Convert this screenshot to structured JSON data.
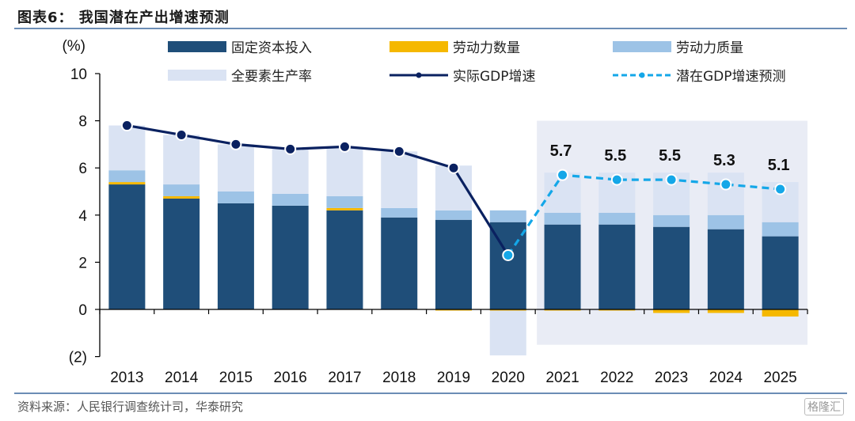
{
  "header": {
    "title": "图表6：  我国潜在产出增速预测"
  },
  "footer": {
    "source": "资料来源：人民银行调查统计司，华泰研究",
    "watermark": "格隆汇"
  },
  "colors": {
    "capital": "#1f4e79",
    "labor_quantity": "#f5b800",
    "labor_quality": "#9dc3e6",
    "tfp": "#dae3f3",
    "actual_gdp": "#0a2160",
    "potential_gdp": "#14a7e8",
    "forecast_shade": "#e9ecf5"
  },
  "chart_data": {
    "type": "bar",
    "stacked": true,
    "title": "我国潜在产出增速预测",
    "ylabel": "(%)",
    "xlabel": "",
    "ylim": [
      -2,
      10
    ],
    "yticks": [
      -2,
      0,
      2,
      4,
      6,
      8,
      10
    ],
    "ytick_labels": [
      "(2)",
      "0",
      "2",
      "4",
      "6",
      "8",
      "10"
    ],
    "grid": false,
    "legend_position": "top",
    "categories": [
      "2013",
      "2014",
      "2015",
      "2016",
      "2017",
      "2018",
      "2019",
      "2020",
      "2021",
      "2022",
      "2023",
      "2024",
      "2025"
    ],
    "forecast_start": "2021",
    "series": [
      {
        "name": "固定资本投入",
        "type": "bar",
        "color_key": "capital",
        "values": [
          5.3,
          4.7,
          4.5,
          4.4,
          4.2,
          3.9,
          3.8,
          3.7,
          3.6,
          3.6,
          3.5,
          3.4,
          3.1
        ]
      },
      {
        "name": "劳动力数量",
        "type": "bar",
        "color_key": "labor_quantity",
        "values": [
          0.1,
          0.1,
          0.0,
          0.0,
          0.1,
          0.0,
          -0.05,
          -0.05,
          -0.05,
          -0.05,
          -0.15,
          -0.15,
          -0.3
        ]
      },
      {
        "name": "劳动力质量",
        "type": "bar",
        "color_key": "labor_quality",
        "values": [
          0.5,
          0.5,
          0.5,
          0.5,
          0.5,
          0.4,
          0.4,
          0.5,
          0.5,
          0.5,
          0.5,
          0.6,
          0.6
        ]
      },
      {
        "name": "全要素生产率",
        "type": "bar",
        "color_key": "tfp",
        "values": [
          1.9,
          2.1,
          2.0,
          1.9,
          2.1,
          2.4,
          1.9,
          -1.9,
          1.7,
          1.7,
          1.8,
          1.8,
          1.7
        ]
      },
      {
        "name": "实际GDP增速",
        "type": "line",
        "color_key": "actual_gdp",
        "values": [
          7.8,
          7.4,
          7.0,
          6.8,
          6.9,
          6.7,
          6.0,
          2.3,
          null,
          null,
          null,
          null,
          null
        ]
      },
      {
        "name": "潜在GDP增速预测",
        "type": "line",
        "dashed": true,
        "color_key": "potential_gdp",
        "values": [
          null,
          null,
          null,
          null,
          null,
          null,
          null,
          2.3,
          5.7,
          5.5,
          5.5,
          5.3,
          5.1
        ],
        "data_labels": [
          null,
          null,
          null,
          null,
          null,
          null,
          null,
          null,
          "5.7",
          "5.5",
          "5.5",
          "5.3",
          "5.1"
        ]
      }
    ]
  }
}
